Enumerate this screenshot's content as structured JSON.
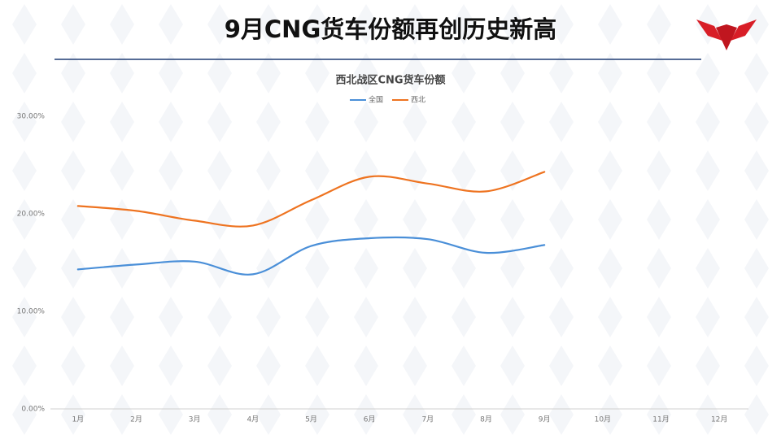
{
  "slide_title": "9月CNG货车份额再创历史新高",
  "chart_data": {
    "type": "line",
    "title": "西北战区CNG货车份额",
    "categories": [
      "1月",
      "2月",
      "3月",
      "4月",
      "5月",
      "6月",
      "7月",
      "8月",
      "9月",
      "10月",
      "11月",
      "12月"
    ],
    "series": [
      {
        "name": "全国",
        "color": "#4a8fd8",
        "values": [
          14.3,
          14.8,
          15.1,
          13.8,
          16.7,
          17.5,
          17.4,
          16.0,
          16.8,
          null,
          null,
          null
        ]
      },
      {
        "name": "西北",
        "color": "#ee7320",
        "values": [
          20.8,
          20.3,
          19.3,
          18.8,
          21.4,
          23.8,
          23.1,
          22.3,
          24.3,
          null,
          null,
          null
        ]
      }
    ],
    "ylim": [
      0,
      30
    ],
    "yticks": [
      {
        "value": 0,
        "label": "0.00%"
      },
      {
        "value": 10,
        "label": "10.00%"
      },
      {
        "value": 20,
        "label": "20.00%"
      },
      {
        "value": 30,
        "label": "30.00%"
      }
    ],
    "grid": false,
    "legend": "top"
  }
}
